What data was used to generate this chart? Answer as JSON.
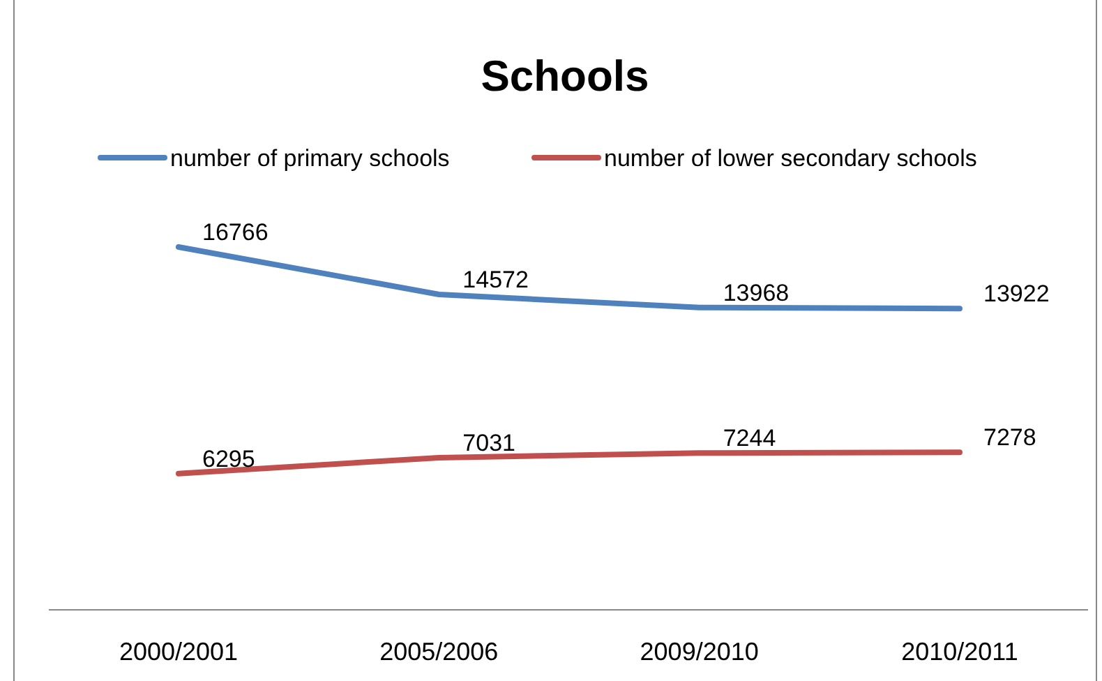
{
  "chart_data": {
    "type": "line",
    "title": "Schools",
    "categories": [
      "2000/2001",
      "2005/2006",
      "2009/2010",
      "2010/2011"
    ],
    "data_labels": true,
    "legend": "top",
    "marker": "none",
    "line_style": "solid",
    "series": [
      {
        "name": "number of primary schools",
        "color": "#4f81bd",
        "values": [
          16766,
          14572,
          13968,
          13922
        ]
      },
      {
        "name": "number of lower secondary schools",
        "color": "#c0504d",
        "values": [
          6295,
          7031,
          7244,
          7278
        ]
      }
    ]
  }
}
